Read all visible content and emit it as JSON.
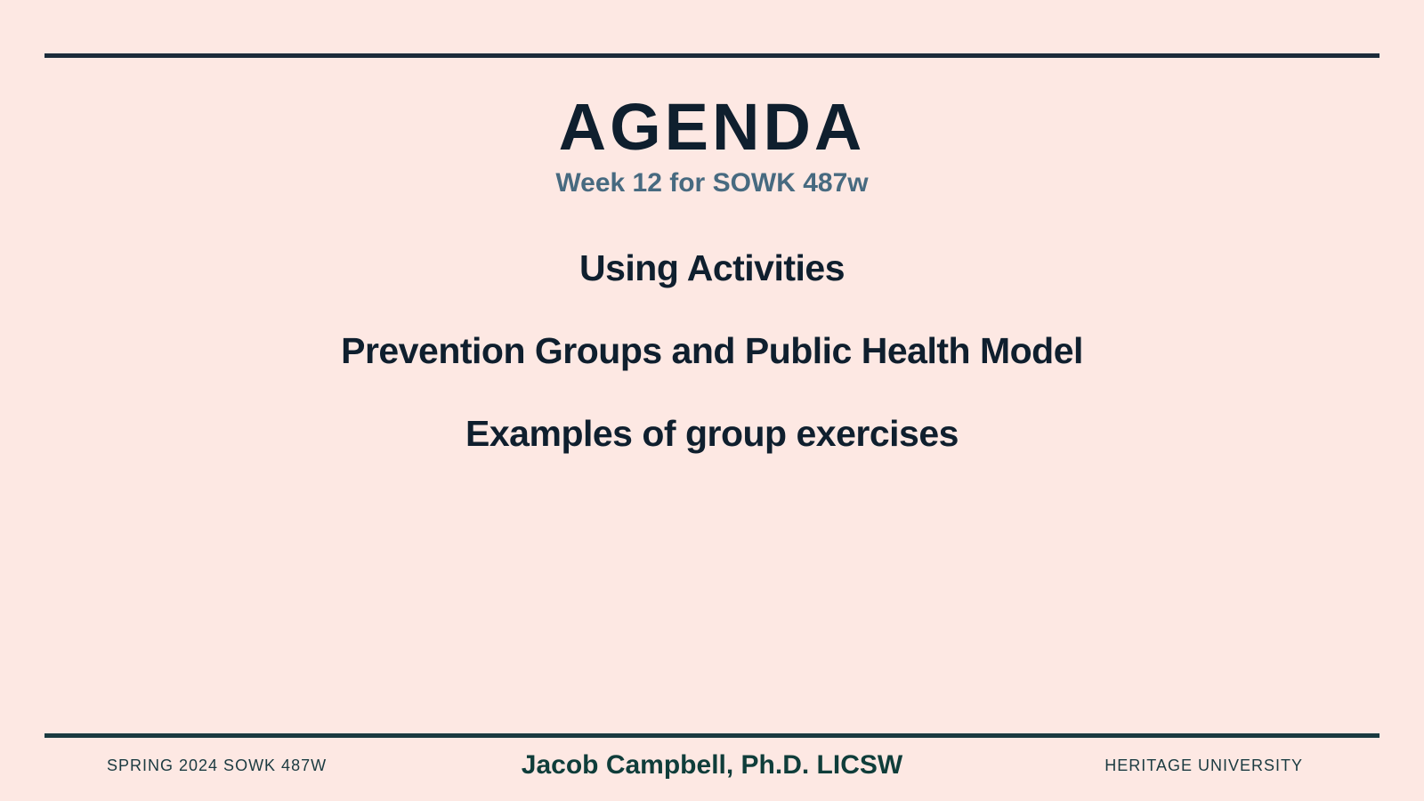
{
  "slide": {
    "title": "AGENDA",
    "subtitle": "Week 12 for SOWK 487w",
    "items": [
      "Using Activities",
      "Prevention Groups and Public Health Model",
      "Examples of group exercises"
    ]
  },
  "footer": {
    "left": "SPRING 2024 SOWK 487W",
    "center": "Jacob Campbell, Ph.D. LICSW",
    "right": "HERITAGE UNIVERSITY"
  },
  "colors": {
    "background": "#fde8e3",
    "title": "#0f1f2e",
    "subtitle": "#476a80",
    "footer_name": "#0f3d3a",
    "rule": "#1b2b3a"
  }
}
